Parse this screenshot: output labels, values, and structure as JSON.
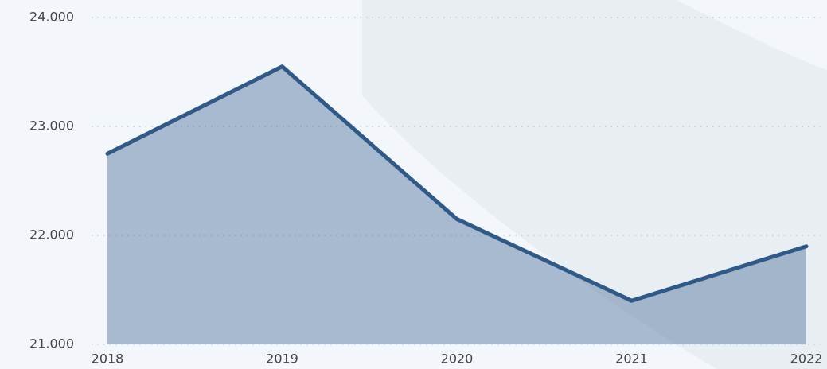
{
  "chart_data": {
    "type": "area",
    "categories": [
      "2018",
      "2019",
      "2020",
      "2021",
      "2022"
    ],
    "series": [
      {
        "color": "#2f5a88",
        "values": [
          22750,
          23550,
          22150,
          21400,
          21900
        ]
      }
    ],
    "ylim": [
      21000,
      24000
    ],
    "yticks": [
      {
        "value": 21000,
        "label": "21.000"
      },
      {
        "value": 22000,
        "label": "22.000"
      },
      {
        "value": 23000,
        "label": "23.000"
      },
      {
        "value": 24000,
        "label": "24.000"
      }
    ],
    "grid": true
  }
}
